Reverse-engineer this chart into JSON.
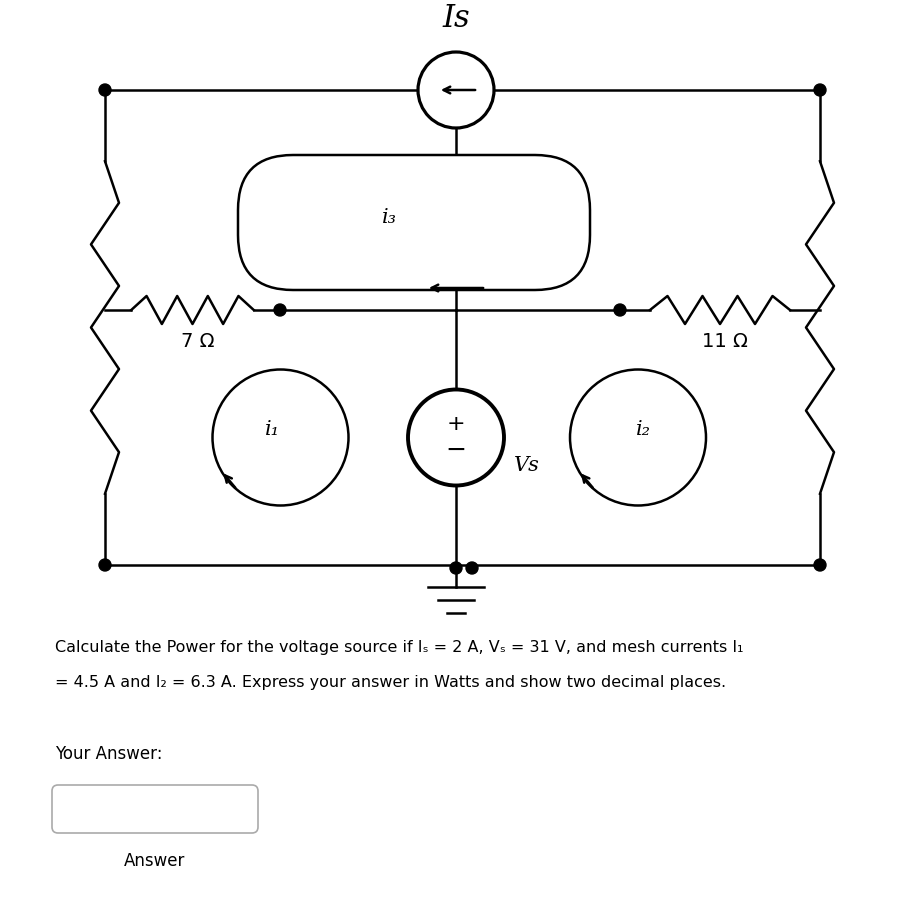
{
  "bg_color": "#ffffff",
  "line_color": "#000000",
  "title": "Is",
  "resistor_7": "7 Ω",
  "resistor_11": "11 Ω",
  "label_i3": "i₃",
  "label_i1": "i₁",
  "label_i2": "i₂",
  "label_Vs": "Vs",
  "problem_line1": "Calculate the Power for the voltage source if Iₛ = 2 A, Vₛ = 31 V, and mesh currents I₁",
  "problem_line2": "= 4.5 A and I₂ = 6.3 A. Express your answer in Watts and show two decimal places.",
  "your_answer_label": "Your Answer:",
  "answer_label": "Answer",
  "figsize": [
    9.12,
    9.24
  ],
  "dpi": 100
}
